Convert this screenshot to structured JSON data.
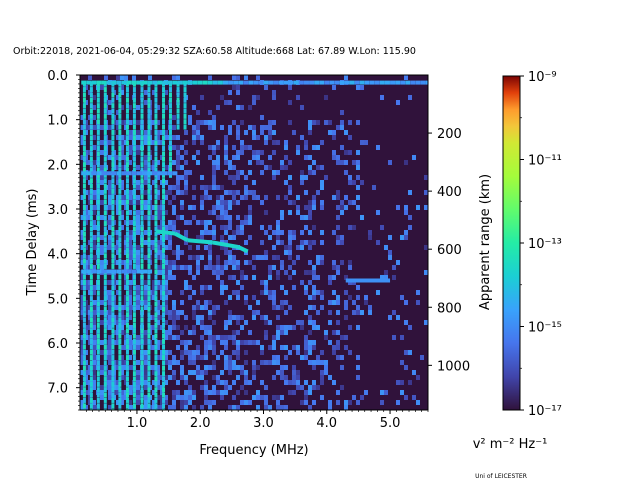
{
  "chart_data": {
    "type": "heatmap",
    "title": "Orbit:22018, 2021-06-04, 05:29:32 SZA:60.58 Altitude:668 Lat: 67.89 W.Lon: 115.90",
    "xlabel": "Frequency (MHz)",
    "ylabel": "Time Delay (ms)",
    "ylabel_right": "Apparent range (km)",
    "xlim": [
      0.1,
      5.6
    ],
    "ylim": [
      7.5,
      0.0
    ],
    "x_ticks": [
      "1.0",
      "2.0",
      "3.0",
      "4.0",
      "5.0"
    ],
    "x_tick_values": [
      1.0,
      2.0,
      3.0,
      4.0,
      5.0
    ],
    "y_ticks": [
      "0.0",
      "1.0",
      "2.0",
      "3.0",
      "4.0",
      "5.0",
      "6.0",
      "7.0"
    ],
    "y_tick_values": [
      0,
      1,
      2,
      3,
      4,
      5,
      6,
      7
    ],
    "right_ticks": [
      "200",
      "400",
      "600",
      "800",
      "1000"
    ],
    "right_tick_values_ms": [
      1.3,
      2.6,
      3.9,
      5.2,
      6.5
    ],
    "colorbar": {
      "label": "v² m⁻² Hz⁻¹",
      "scale": "log",
      "min_exp": -17,
      "max_exp": -9,
      "tick_exps": [
        -17,
        -15,
        -13,
        -11,
        -9
      ],
      "tick_labels": [
        "10⁻¹⁷",
        "10⁻¹⁵",
        "10⁻¹³",
        "10⁻¹¹",
        "10⁻⁹"
      ],
      "colormap": "turbo"
    },
    "features": {
      "vertical_harmonic_lines_mhz": [
        0.17,
        0.28,
        0.39,
        0.5,
        0.62,
        0.73,
        0.85,
        0.96,
        1.08,
        1.19,
        1.3,
        1.42,
        1.53,
        1.65,
        1.76
      ],
      "horizontal_band_delays_ms": [
        0.17,
        2.2,
        4.4
      ],
      "ionospheric_trace": [
        {
          "f": 1.3,
          "t": 3.5
        },
        {
          "f": 1.6,
          "t": 3.55
        },
        {
          "f": 1.8,
          "t": 3.7
        },
        {
          "f": 2.2,
          "t": 3.75
        },
        {
          "f": 2.6,
          "t": 3.85
        },
        {
          "f": 2.75,
          "t": 3.95
        }
      ],
      "secondary_trace": {
        "f_start": 4.3,
        "f_end": 5.0,
        "t": 4.6
      },
      "background_exp": -17,
      "noise_exp_range": [
        -16.5,
        -14.8
      ],
      "harmonic_exp_range": [
        -14.2,
        -13.3
      ]
    }
  },
  "credit": "Uni of LEICESTER"
}
